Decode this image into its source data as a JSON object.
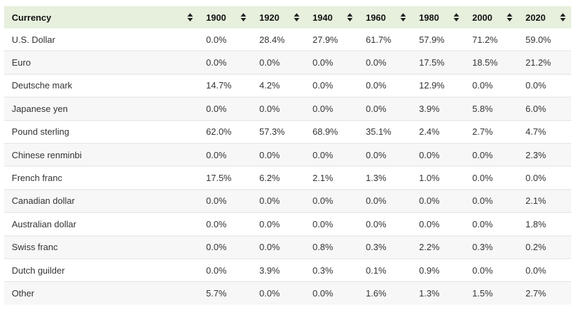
{
  "table": {
    "headers": [
      "Currency",
      "1900",
      "1920",
      "1940",
      "1960",
      "1980",
      "2000",
      "2020"
    ],
    "rows": [
      [
        "U.S. Dollar",
        "0.0%",
        "28.4%",
        "27.9%",
        "61.7%",
        "57.9%",
        "71.2%",
        "59.0%"
      ],
      [
        "Euro",
        "0.0%",
        "0.0%",
        "0.0%",
        "0.0%",
        "17.5%",
        "18.5%",
        "21.2%"
      ],
      [
        "Deutsche mark",
        "14.7%",
        "4.2%",
        "0.0%",
        "0.0%",
        "12.9%",
        "0.0%",
        "0.0%"
      ],
      [
        "Japanese yen",
        "0.0%",
        "0.0%",
        "0.0%",
        "0.0%",
        "3.9%",
        "5.8%",
        "6.0%"
      ],
      [
        "Pound sterling",
        "62.0%",
        "57.3%",
        "68.9%",
        "35.1%",
        "2.4%",
        "2.7%",
        "4.7%"
      ],
      [
        "Chinese renminbi",
        "0.0%",
        "0.0%",
        "0.0%",
        "0.0%",
        "0.0%",
        "0.0%",
        "2.3%"
      ],
      [
        "French franc",
        "17.5%",
        "6.2%",
        "2.1%",
        "1.3%",
        "1.0%",
        "0.0%",
        "0.0%"
      ],
      [
        "Canadian dollar",
        "0.0%",
        "0.0%",
        "0.0%",
        "0.0%",
        "0.0%",
        "0.0%",
        "2.1%"
      ],
      [
        "Australian dollar",
        "0.0%",
        "0.0%",
        "0.0%",
        "0.0%",
        "0.0%",
        "0.0%",
        "1.8%"
      ],
      [
        "Swiss franc",
        "0.0%",
        "0.0%",
        "0.8%",
        "0.3%",
        "2.2%",
        "0.3%",
        "0.2%"
      ],
      [
        "Dutch guilder",
        "0.0%",
        "3.9%",
        "0.3%",
        "0.1%",
        "0.9%",
        "0.0%",
        "0.0%"
      ],
      [
        "Other",
        "5.7%",
        "0.0%",
        "0.0%",
        "1.6%",
        "1.3%",
        "1.5%",
        "2.7%"
      ]
    ],
    "colors": {
      "header_bg": "#e6f0dc",
      "row_alt_bg": "#f7f7f7",
      "border": "#e3e3e3"
    },
    "sort_icon": "sort-updown-icon"
  }
}
